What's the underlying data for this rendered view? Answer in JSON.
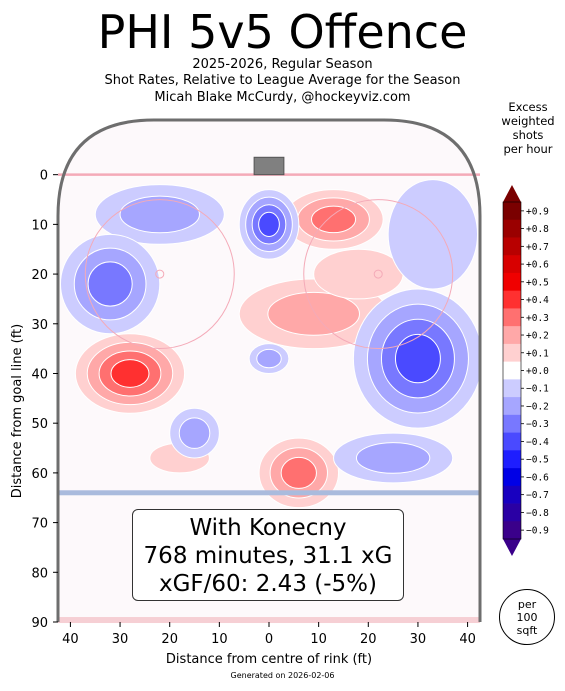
{
  "title": "PHI 5v5 Offence",
  "subtitle_lines": [
    "2025-2026, Regular Season",
    "Shot Rates, Relative to League Average for the Season",
    "Micah Blake McCurdy, @hockeyviz.com"
  ],
  "legend_title_lines": [
    "Excess",
    "weighted",
    "shots",
    "per hour"
  ],
  "annotation_lines": [
    "With Konecny",
    "768 minutes, 31.1 xG",
    "xGF/60: 2.43 (-5%)"
  ],
  "per_badge_lines": [
    "per",
    "100",
    "sqft"
  ],
  "generated": "Generated on 2026-02-06",
  "colors": {
    "rink_border": "#6e6e6e",
    "goal_line": "#f4aab8",
    "blue_line": "#aabbdd",
    "red_max": "#7a0000",
    "blue_max": "#3a008a"
  },
  "chart_data": {
    "type": "heatmap",
    "xlabel": "Distance from centre of rink (ft)",
    "ylabel": "Distance from goal line (ft)",
    "xlim": [
      -42.5,
      42.5
    ],
    "ylim": [
      -11,
      90
    ],
    "x_ticks": [
      -40,
      -30,
      -20,
      -10,
      0,
      10,
      20,
      30,
      40
    ],
    "x_tick_labels": [
      "40",
      "30",
      "20",
      "10",
      "0",
      "10",
      "20",
      "30",
      "40"
    ],
    "y_ticks": [
      0,
      10,
      20,
      30,
      40,
      50,
      60,
      70,
      80,
      90
    ],
    "y_tick_labels": [
      "0",
      "10",
      "20",
      "30",
      "40",
      "50",
      "60",
      "70",
      "80",
      "90"
    ],
    "colorbar": {
      "levels": [
        0.9,
        0.8,
        0.7,
        0.6,
        0.5,
        0.4,
        0.3,
        0.2,
        0.1,
        0.0,
        -0.1,
        -0.2,
        -0.3,
        -0.4,
        -0.5,
        -0.6,
        -0.7,
        -0.8,
        -0.9
      ],
      "labels": [
        "+0.9",
        "+0.8",
        "+0.7",
        "+0.6",
        "+0.5",
        "+0.4",
        "+0.3",
        "+0.2",
        "+0.1",
        "+0.0",
        "−0.1",
        "−0.2",
        "−0.3",
        "−0.4",
        "−0.5",
        "−0.6",
        "−0.7",
        "−0.8",
        "−0.9"
      ],
      "extend": "both"
    },
    "regions": [
      {
        "x": -28,
        "y": 40,
        "rx": 11,
        "ry": 8,
        "value": 0.35
      },
      {
        "x": 6,
        "y": 60,
        "rx": 8,
        "ry": 7,
        "value": 0.25
      },
      {
        "x": 13,
        "y": 9,
        "rx": 10,
        "ry": 6,
        "value": 0.25
      },
      {
        "x": 9,
        "y": 28,
        "rx": 15,
        "ry": 7,
        "value": 0.2
      },
      {
        "x": 18,
        "y": 20,
        "rx": 9,
        "ry": 5,
        "value": 0.1
      },
      {
        "x": -18,
        "y": 57,
        "rx": 6,
        "ry": 3,
        "value": 0.1
      },
      {
        "x": 30,
        "y": 37,
        "rx": 13,
        "ry": 14,
        "value": -0.35
      },
      {
        "x": 0,
        "y": 10,
        "rx": 6,
        "ry": 7,
        "value": -0.35
      },
      {
        "x": -22,
        "y": 8,
        "rx": 13,
        "ry": 6,
        "value": -0.2
      },
      {
        "x": -32,
        "y": 22,
        "rx": 10,
        "ry": 10,
        "value": -0.25
      },
      {
        "x": 33,
        "y": 12,
        "rx": 9,
        "ry": 11,
        "value": -0.1
      },
      {
        "x": -15,
        "y": 52,
        "rx": 5,
        "ry": 5,
        "value": -0.15
      },
      {
        "x": 0,
        "y": 37,
        "rx": 4,
        "ry": 3,
        "value": -0.2
      },
      {
        "x": 25,
        "y": 57,
        "rx": 12,
        "ry": 5,
        "value": -0.15
      }
    ]
  }
}
